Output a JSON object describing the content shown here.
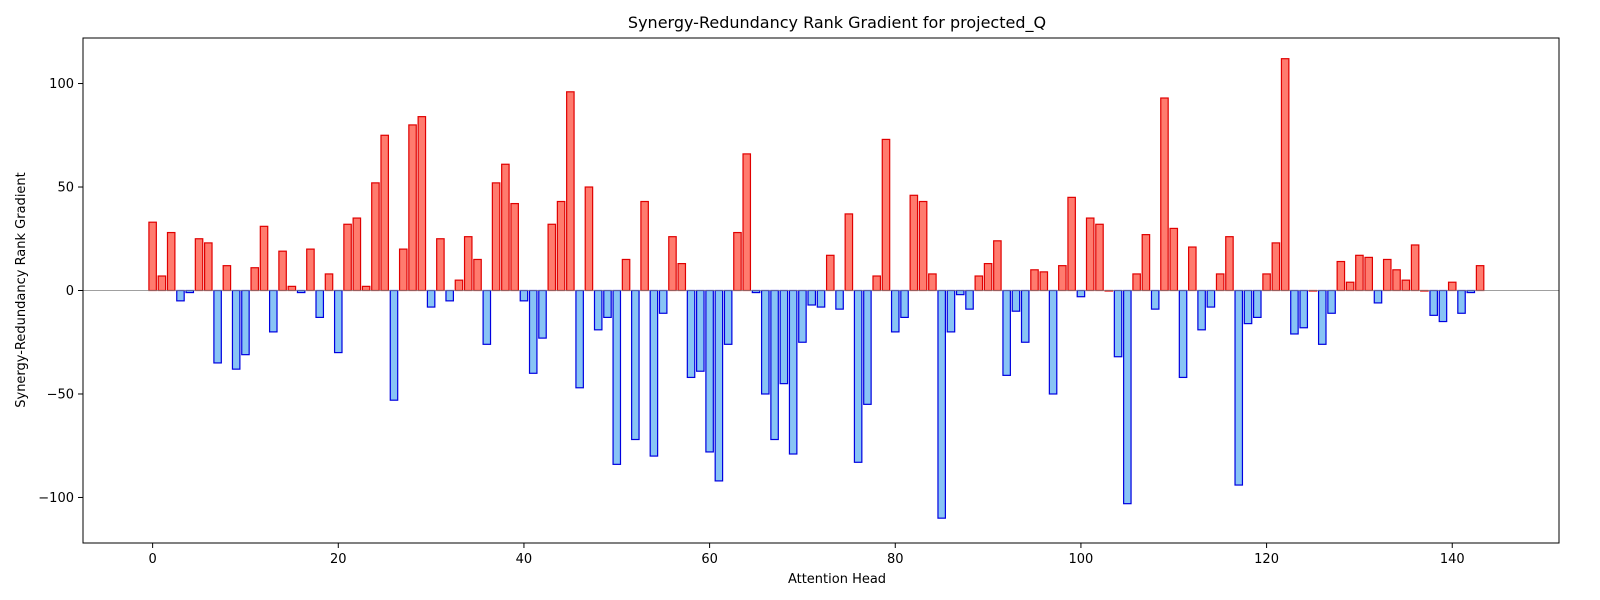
{
  "chart_data": {
    "type": "bar",
    "title": "Synergy-Redundancy Rank Gradient for projected_Q",
    "xlabel": "Attention Head",
    "ylabel": "Synergy-Redundancy Rank Gradient",
    "xlim": [
      -7.5,
      151.5
    ],
    "ylim": [
      -122,
      122
    ],
    "xticks": [
      0,
      20,
      40,
      60,
      80,
      100,
      120,
      140
    ],
    "yticks": [
      -100,
      -50,
      0,
      50,
      100
    ],
    "grid": false,
    "legend": "none",
    "colors": {
      "positive_fill": "#ff7b6e",
      "positive_edge": "#e00000",
      "negative_fill": "#88c4f5",
      "negative_edge": "#0000e0",
      "zero_line": "#808080"
    },
    "x": [
      0,
      1,
      2,
      3,
      4,
      5,
      6,
      7,
      8,
      9,
      10,
      11,
      12,
      13,
      14,
      15,
      16,
      17,
      18,
      19,
      20,
      21,
      22,
      23,
      24,
      25,
      26,
      27,
      28,
      29,
      30,
      31,
      32,
      33,
      34,
      35,
      36,
      37,
      38,
      39,
      40,
      41,
      42,
      43,
      44,
      45,
      46,
      47,
      48,
      49,
      50,
      51,
      52,
      53,
      54,
      55,
      56,
      57,
      58,
      59,
      60,
      61,
      62,
      63,
      64,
      65,
      66,
      67,
      68,
      69,
      70,
      71,
      72,
      73,
      74,
      75,
      76,
      77,
      78,
      79,
      80,
      81,
      82,
      83,
      84,
      85,
      86,
      87,
      88,
      89,
      90,
      91,
      92,
      93,
      94,
      95,
      96,
      97,
      98,
      99,
      100,
      101,
      102,
      103,
      104,
      105,
      106,
      107,
      108,
      109,
      110,
      111,
      112,
      113,
      114,
      115,
      116,
      117,
      118,
      119,
      120,
      121,
      122,
      123,
      124,
      125,
      126,
      127,
      128,
      129,
      130,
      131,
      132,
      133,
      134,
      135,
      136,
      137,
      138,
      139,
      140,
      141,
      142,
      143
    ],
    "values": [
      33,
      7,
      28,
      -5,
      -1,
      25,
      23,
      -35,
      12,
      -38,
      -31,
      11,
      31,
      -20,
      19,
      2,
      -1,
      20,
      -13,
      8,
      -30,
      32,
      35,
      2,
      52,
      75,
      -53,
      20,
      80,
      84,
      -8,
      25,
      -5,
      5,
      26,
      15,
      -26,
      52,
      61,
      42,
      -5,
      -40,
      -23,
      32,
      43,
      96,
      -47,
      50,
      -19,
      -13,
      -84,
      15,
      -72,
      43,
      -80,
      -11,
      26,
      13,
      -42,
      -39,
      -78,
      -92,
      -26,
      28,
      66,
      -1,
      -50,
      -72,
      -45,
      -79,
      -25,
      -7,
      -8,
      17,
      -9,
      37,
      -83,
      -55,
      7,
      73,
      -20,
      -13,
      46,
      43,
      8,
      -110,
      -20,
      -2,
      -9,
      7,
      13,
      24,
      -41,
      -10,
      -25,
      10,
      9,
      -50,
      12,
      45,
      -3,
      35,
      32,
      0,
      -32,
      -103,
      8,
      27,
      -9,
      93,
      30,
      -42,
      21,
      -19,
      -8,
      8,
      26,
      -94,
      -16,
      -13,
      8,
      23,
      112,
      -21,
      -18,
      0,
      -26,
      -11,
      14,
      4,
      17,
      16,
      -6,
      15,
      10,
      5,
      22,
      0,
      -12,
      -15,
      4,
      -11,
      -1,
      12
    ]
  }
}
